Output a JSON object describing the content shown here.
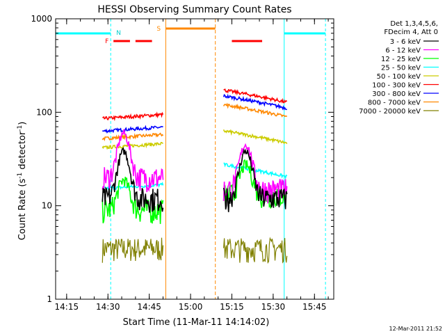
{
  "chart_data": {
    "type": "line",
    "title": "HESSI Observing Summary Count Rates",
    "xlabel": "Start Time (11-Mar-11 14:14:02)",
    "ylabel_main": "Count Rate (s",
    "ylabel_sup1": "-1",
    "ylabel_mid": " detector",
    "ylabel_sup2": "-1",
    "ylabel_end": ")",
    "y_scale": "log",
    "xlim": [
      "14:11",
      "15:52"
    ],
    "ylim": [
      1,
      1000
    ],
    "x_ticks": [
      "14:15",
      "14:30",
      "14:45",
      "15:00",
      "15:15",
      "15:30",
      "15:45"
    ],
    "y_ticks": [
      "1",
      "10",
      "100",
      "1000"
    ],
    "timestamp": "12-Mar-2011 21:52",
    "legend_header": [
      "Det 1,3,4,5,6,",
      "FDecim 4, Att 0"
    ],
    "series": [
      {
        "name": "3 - 6 keV",
        "color": "#000000"
      },
      {
        "name": "6 - 12 keV",
        "color": "#ff00ff"
      },
      {
        "name": "12 - 25 keV",
        "color": "#00ff00"
      },
      {
        "name": "25 - 50 keV",
        "color": "#00ffff"
      },
      {
        "name": "50 - 100 keV",
        "color": "#cccc00"
      },
      {
        "name": "100 - 300 keV",
        "color": "#ff0000"
      },
      {
        "name": "300 - 800 keV",
        "color": "#0000ff"
      },
      {
        "name": "800 - 7000 keV",
        "color": "#ff8800"
      },
      {
        "name": "7000 - 20000 keV",
        "color": "#808000"
      }
    ],
    "segments": [
      {
        "start": "14:28",
        "end": "14:50",
        "levels": [
          12,
          20,
          9,
          16,
          44,
          90,
          66,
          55,
          3.5
        ]
      },
      {
        "start": "15:12",
        "end": "15:35",
        "levels": [
          12,
          15,
          13,
          24,
          55,
          150,
          130,
          105,
          3.5
        ]
      }
    ],
    "annotations": {
      "flare_label": "F",
      "night_label": "N",
      "saa_label": "S",
      "saa_start": "14:51",
      "saa_end": "15:09",
      "night_periods": [
        [
          "14:11",
          "14:31"
        ],
        [
          "15:34",
          "15:49"
        ]
      ],
      "flare_bars": [
        [
          "14:32",
          "14:38"
        ],
        [
          "14:40",
          "14:46"
        ],
        [
          "15:15",
          "15:26"
        ]
      ]
    }
  }
}
